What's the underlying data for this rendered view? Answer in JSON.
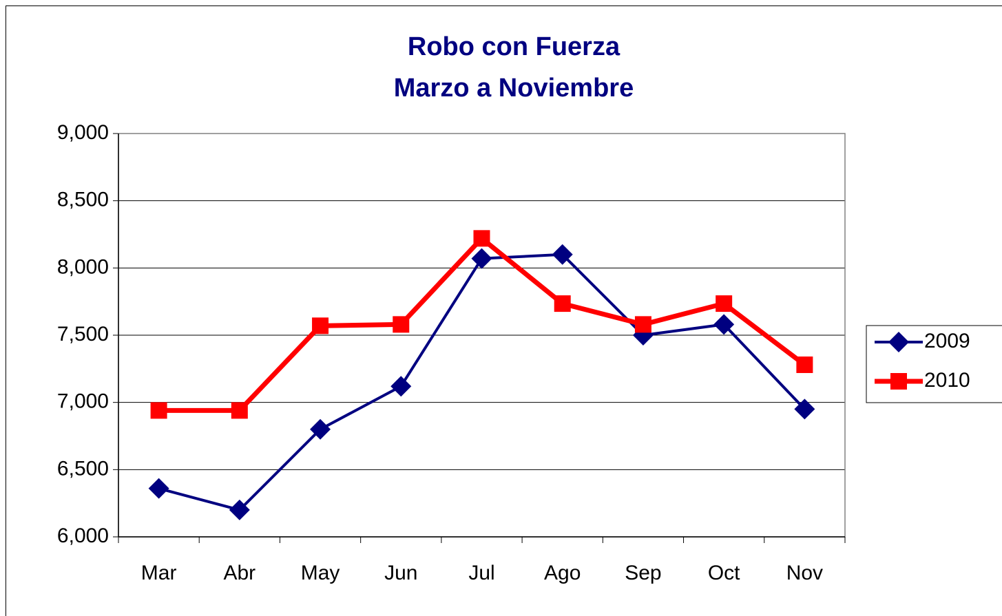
{
  "chart_data": {
    "type": "line",
    "title": [
      "Robo con Fuerza",
      "Marzo a Noviembre"
    ],
    "categories": [
      "Mar",
      "Abr",
      "May",
      "Jun",
      "Jul",
      "Ago",
      "Sep",
      "Oct",
      "Nov"
    ],
    "series": [
      {
        "name": "2009",
        "color": "#000080",
        "marker": "diamond",
        "values": [
          6360,
          6200,
          6800,
          7120,
          8070,
          8100,
          7500,
          7580,
          6950
        ]
      },
      {
        "name": "2010",
        "color": "#ff0000",
        "marker": "square",
        "values": [
          6940,
          6940,
          7570,
          7580,
          8220,
          7735,
          7580,
          7735,
          7280
        ]
      }
    ],
    "ylim": [
      6000,
      9000
    ],
    "yticks": [
      {
        "value": 6000,
        "label": "6,000"
      },
      {
        "value": 6500,
        "label": "6,500"
      },
      {
        "value": 7000,
        "label": "7,000"
      },
      {
        "value": 7500,
        "label": "7,500"
      },
      {
        "value": 8000,
        "label": "8,000"
      },
      {
        "value": 8500,
        "label": "8,500"
      },
      {
        "value": 9000,
        "label": "9,000"
      }
    ],
    "grid": true,
    "legend": "right"
  }
}
